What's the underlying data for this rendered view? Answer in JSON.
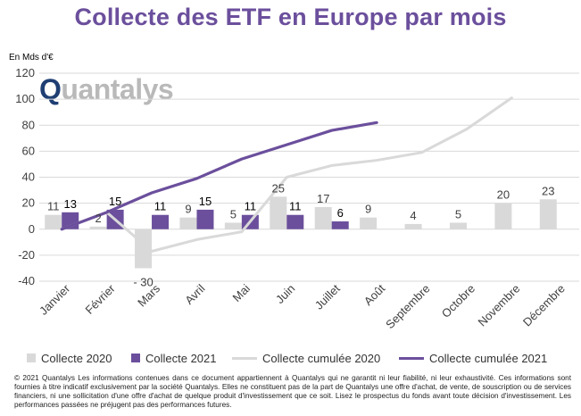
{
  "title": "Collecte des ETF en Europe par mois",
  "unit_label": "En Mds d'€",
  "logo": {
    "q": "Q",
    "rest": "uantalys"
  },
  "footnote": "© 2021 Quantalys Les informations contenues dans ce document appartiennent à Quantalys qui ne garantit ni leur fiabilité, ni leur exhaustivité. Ces informations sont fournies à titre indicatif exclusivement par la société Quantalys. Elles ne constituent pas de la part de Quantalys une offre d'achat, de vente, de souscription ou de services financiers, ni une sollicitation d'une offre d'achat de quelque produit d'investissement que ce soit. Lisez le prospectus du fonds avant toute décision d'investissement. Les performances passées ne préjugent pas des performances futures.",
  "colors": {
    "title": "#6b4f9c",
    "bar_2020": "#d9d9d9",
    "bar_2021": "#6b4f9c",
    "line_2020": "#d9d9d9",
    "line_2021": "#6b4f9c",
    "grid": "#d9d9d9"
  },
  "chart_data": {
    "type": "bar+line",
    "categories": [
      "Janvier",
      "Février",
      "Mars",
      "Avril",
      "Mai",
      "Juin",
      "Juillet",
      "Août",
      "Septembre",
      "Octobre",
      "Novembre",
      "Décembre"
    ],
    "series": [
      {
        "name": "Collecte 2020",
        "type": "bar",
        "values": [
          11,
          2,
          -30,
          9,
          5,
          25,
          17,
          9,
          4,
          5,
          20,
          23
        ]
      },
      {
        "name": "Collecte 2021",
        "type": "bar",
        "values": [
          13,
          15,
          11,
          15,
          11,
          11,
          6,
          null,
          null,
          null,
          null,
          null
        ]
      },
      {
        "name": "Collecte cumulée 2020",
        "type": "line",
        "values": [
          0,
          13,
          -17,
          -8,
          -2,
          40,
          49,
          53,
          59,
          77,
          101,
          null
        ]
      },
      {
        "name": "Collecte cumulée 2021",
        "type": "line",
        "values": [
          0,
          13,
          28,
          39,
          54,
          65,
          76,
          82,
          null,
          null,
          null,
          null
        ]
      }
    ],
    "bar_labels_2020": [
      "11",
      "2",
      "- 30",
      "9",
      "5",
      "25",
      "17",
      "9",
      "4",
      "5",
      "20",
      "23"
    ],
    "bar_labels_2021": [
      "13",
      "15",
      "11",
      "15",
      "11",
      "11",
      "6"
    ],
    "y_ticks": [
      "-40",
      "-20",
      "0",
      "20",
      "40",
      "60",
      "80",
      "100",
      "120"
    ],
    "ylim": [
      -40,
      120
    ],
    "grid": true,
    "legend_position": "bottom"
  }
}
